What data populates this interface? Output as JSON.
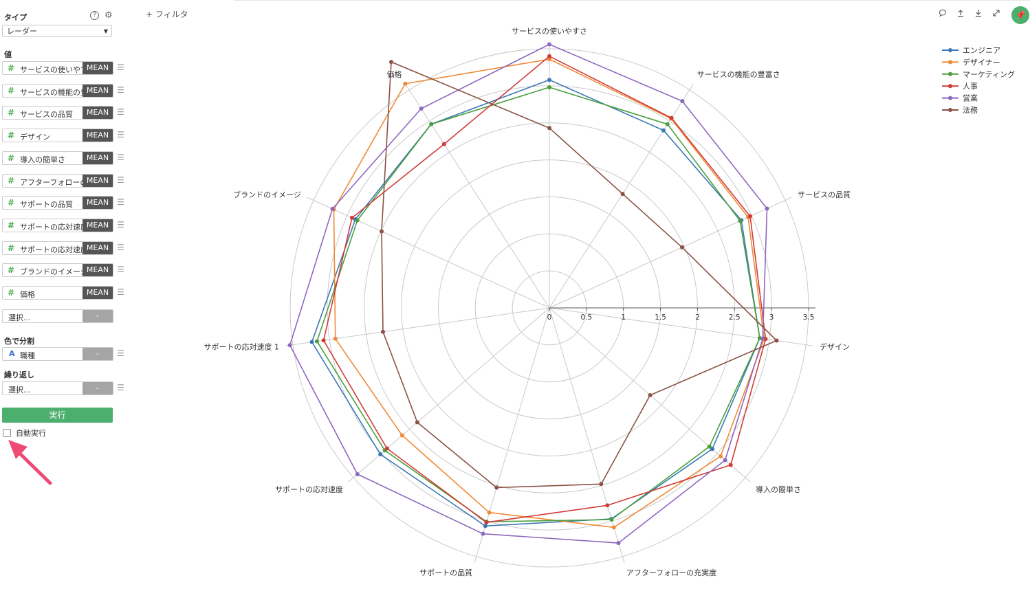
{
  "sidebar": {
    "type_label": "タイプ",
    "chart_type": "レーダー",
    "values_label": "値",
    "value_fields": [
      {
        "name": "サービスの使いやすさ",
        "agg": "MEAN"
      },
      {
        "name": "サービスの機能の豊富さ",
        "agg": "MEAN"
      },
      {
        "name": "サービスの品質",
        "agg": "MEAN"
      },
      {
        "name": "デザイン",
        "agg": "MEAN"
      },
      {
        "name": "導入の簡単さ",
        "agg": "MEAN"
      },
      {
        "name": "アフターフォローの充実度",
        "agg": "MEAN"
      },
      {
        "name": "サポートの品質",
        "agg": "MEAN"
      },
      {
        "name": "サポートの応対速度",
        "agg": "MEAN"
      },
      {
        "name": "サポートの応対速度 1",
        "agg": "MEAN"
      },
      {
        "name": "ブランドのイメージ",
        "agg": "MEAN"
      },
      {
        "name": "価格",
        "agg": "MEAN"
      }
    ],
    "value_placeholder": "選択...",
    "empty_agg": "-",
    "color_label": "色で分割",
    "color_field": "職種",
    "repeat_label": "繰り返し",
    "repeat_placeholder": "選択...",
    "run_label": "実行",
    "auto_run_label": "自動実行",
    "auto_run_checked": false
  },
  "toolbar": {
    "filter_label": "+ フィルタ",
    "icons": [
      "comment-icon",
      "upload-icon",
      "download-icon",
      "expand-icon",
      "pin-icon"
    ],
    "pin_color": "#4caf6e"
  },
  "chart_data": {
    "type": "radar",
    "axes": [
      "サービスの使いやすさ",
      "サービスの機能の豊富さ",
      "サービスの品質",
      "デザイン",
      "導入の簡単さ",
      "アフターフォローの充実度",
      "サポートの品質",
      "サポートの応対速度",
      "サポートの応対速度 1",
      "ブランドのイメージ",
      "価格"
    ],
    "rmax": 3.5,
    "ticks": [
      0,
      0.5,
      1,
      1.5,
      2,
      2.5,
      3,
      3.5
    ],
    "tick_labels": [
      "0",
      "0.5",
      "1",
      "1.5",
      "2",
      "2.5",
      "3",
      "3.5"
    ],
    "legend_position": "top-right",
    "series": [
      {
        "name": "エンジニア",
        "color": "#3a78b5",
        "values": [
          3.08,
          2.85,
          2.85,
          2.87,
          2.91,
          2.97,
          3.07,
          3.02,
          3.24,
          2.88,
          2.95
        ]
      },
      {
        "name": "デザイナー",
        "color": "#ef8a37",
        "values": [
          3.36,
          3.04,
          2.95,
          2.93,
          3.06,
          3.09,
          2.88,
          2.63,
          2.92,
          3.2,
          3.6
        ]
      },
      {
        "name": "マーケティング",
        "color": "#4a9e3c",
        "values": [
          2.98,
          2.95,
          2.83,
          2.87,
          2.86,
          2.98,
          3.01,
          2.94,
          3.17,
          2.85,
          2.95
        ]
      },
      {
        "name": "人事",
        "color": "#d03a37",
        "values": [
          3.4,
          3.05,
          2.98,
          2.95,
          3.24,
          2.78,
          3.02,
          2.9,
          3.08,
          2.93,
          2.63
        ]
      },
      {
        "name": "営業",
        "color": "#8e67bf",
        "values": [
          3.56,
          3.32,
          3.23,
          2.91,
          3.14,
          3.31,
          3.18,
          3.43,
          3.54,
          3.22,
          3.2
        ]
      },
      {
        "name": "法務",
        "color": "#8b5144",
        "values": [
          2.43,
          1.83,
          1.97,
          3.1,
          1.8,
          2.48,
          2.53,
          2.36,
          2.27,
          2.49,
          3.95
        ]
      }
    ]
  }
}
